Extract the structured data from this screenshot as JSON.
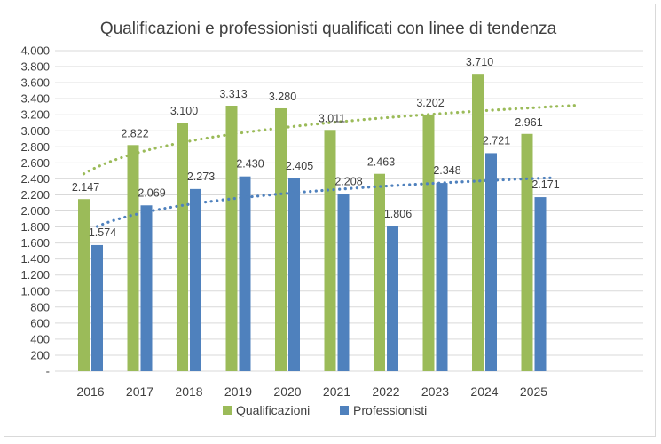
{
  "chart_data": {
    "type": "bar",
    "title": "Qualificazioni e professionisti qualificati con linee di tendenza",
    "categories": [
      "2016",
      "2017",
      "2018",
      "2019",
      "2020",
      "2021",
      "2022",
      "2023",
      "2024",
      "2025"
    ],
    "series": [
      {
        "name": "Qualificazioni",
        "values": [
          2147,
          2822,
          3100,
          3313,
          3280,
          3011,
          2463,
          3202,
          3710,
          2961
        ],
        "labels": [
          "2.147",
          "2.822",
          "3.100",
          "3.313",
          "3.280",
          "3.011",
          "2.463",
          "3.202",
          "3.710",
          "2.961"
        ],
        "color": "#9bbb59",
        "trendline": {
          "type": "logarithmic",
          "color": "#9bbb59",
          "style": "dotted"
        }
      },
      {
        "name": "Professionisti",
        "values": [
          1574,
          2069,
          2273,
          2430,
          2405,
          2208,
          1806,
          2348,
          2721,
          2171
        ],
        "labels": [
          "1.574",
          "2.069",
          "2.273",
          "2.430",
          "2.405",
          "2.208",
          "1.806",
          "2.348",
          "2.721",
          "2.171"
        ],
        "color": "#4f81bd",
        "trendline": {
          "type": "logarithmic",
          "color": "#4f81bd",
          "style": "dotted"
        }
      }
    ],
    "ylim": [
      0,
      4000
    ],
    "ytick_values": [
      0,
      200,
      400,
      600,
      800,
      1000,
      1200,
      1400,
      1600,
      1800,
      2000,
      2200,
      2400,
      2600,
      2800,
      3000,
      3200,
      3400,
      3600,
      3800,
      4000
    ],
    "ytick_labels": [
      "-",
      "200",
      "400",
      "600",
      "800",
      "1.000",
      "1.200",
      "1.400",
      "1.600",
      "1.800",
      "2.000",
      "2.200",
      "2.400",
      "2.600",
      "2.800",
      "3.000",
      "3.200",
      "3.400",
      "3.600",
      "3.800",
      "4.000"
    ],
    "grid": true,
    "legend_position": "bottom",
    "colors": {
      "gridline": "#d9d9d9",
      "text": "#404040",
      "title": "#404040"
    }
  }
}
